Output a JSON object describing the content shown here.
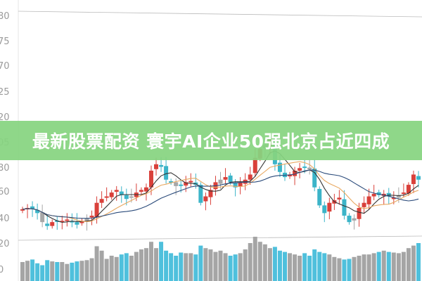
{
  "headline": "最新股票配资 寰宇AI企业50强北京占近四成",
  "colors": {
    "banner": "#86d480",
    "up": "#d9403a",
    "down": "#3bb4c8",
    "neutral": "#a8a8a8",
    "ma5": "#333333",
    "ma10": "#e8a860",
    "ma20": "#2a4a7a"
  },
  "chart_data": {
    "type": "candlestick",
    "title": "",
    "grid": false,
    "y_tick_labels_upper": [
      "80",
      "75",
      "70",
      "25",
      "20",
      "05"
    ],
    "y_tick_labels_lower": [
      "80",
      "60",
      "40",
      "20",
      "0"
    ],
    "close": [
      45,
      46,
      45,
      42,
      35,
      32,
      35,
      36,
      36,
      37,
      35,
      33,
      36,
      38,
      40,
      50,
      53,
      55,
      58,
      60,
      56,
      53,
      55,
      58,
      60,
      62,
      75,
      80,
      78,
      68,
      66,
      63,
      64,
      66,
      67,
      64,
      50,
      55,
      60,
      66,
      68,
      70,
      66,
      62,
      66,
      68,
      72,
      85,
      92,
      95,
      100,
      80,
      74,
      70,
      72,
      75,
      77,
      78,
      76,
      62,
      48,
      42,
      50,
      52,
      54,
      40,
      35,
      38,
      46,
      50,
      55,
      57,
      56,
      57,
      55,
      54,
      56,
      58,
      64,
      72,
      68
    ],
    "volume": [
      30,
      32,
      34,
      28,
      25,
      33,
      31,
      30,
      30,
      27,
      29,
      31,
      32,
      33,
      36,
      55,
      48,
      35,
      40,
      38,
      42,
      44,
      40,
      46,
      50,
      52,
      62,
      52,
      62,
      48,
      44,
      40,
      45,
      44,
      44,
      42,
      56,
      52,
      50,
      46,
      48,
      44,
      40,
      42,
      44,
      50,
      60,
      70,
      62,
      58,
      52,
      54,
      48,
      46,
      44,
      42,
      40,
      44,
      40,
      50,
      46,
      44,
      42,
      38,
      36,
      34,
      35,
      38,
      40,
      42,
      42,
      44,
      46,
      48,
      46,
      45,
      44,
      46,
      52,
      56,
      60
    ],
    "moving_averages": [
      5,
      10,
      20
    ]
  }
}
